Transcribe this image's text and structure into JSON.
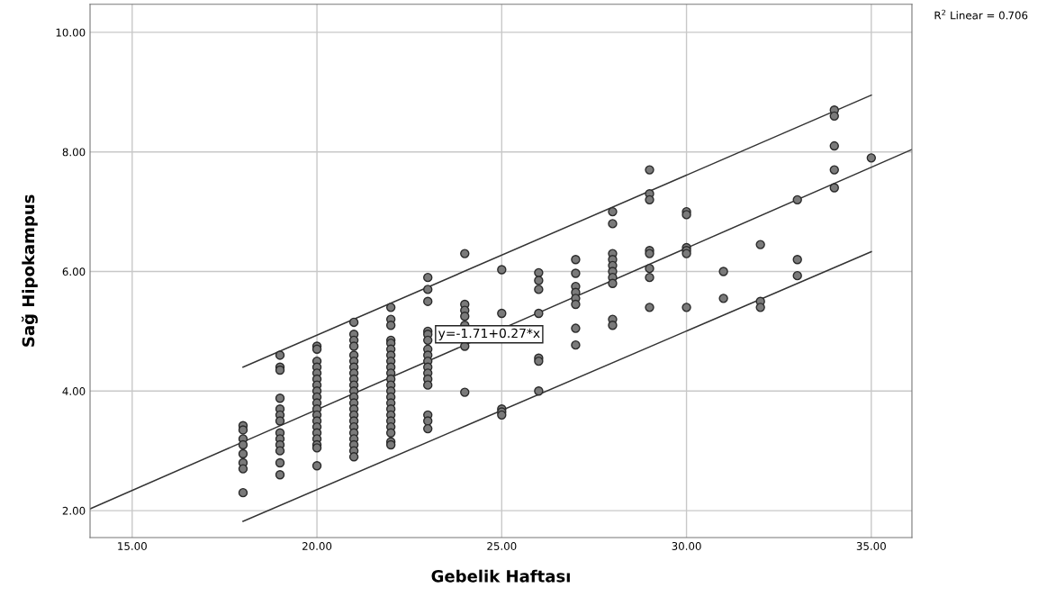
{
  "chart_data": {
    "type": "scatter",
    "xlabel": "Gebelik Haftası",
    "ylabel": "Sağ Hipokampus",
    "xlim": [
      13.86,
      36.1
    ],
    "ylim": [
      1.55,
      10.47
    ],
    "xticks": [
      {
        "value": 15,
        "label": "15.00"
      },
      {
        "value": 20,
        "label": "20.00"
      },
      {
        "value": 25,
        "label": "25.00"
      },
      {
        "value": 30,
        "label": "30.00"
      },
      {
        "value": 35,
        "label": "35.00"
      }
    ],
    "yticks": [
      {
        "value": 2,
        "label": "2.00"
      },
      {
        "value": 4,
        "label": "4.00"
      },
      {
        "value": 6,
        "label": "6.00"
      },
      {
        "value": 8,
        "label": "8.00"
      },
      {
        "value": 10,
        "label": "10.00"
      }
    ],
    "grid": true,
    "marker": "circle",
    "annotations": [
      {
        "text": "y=-1.71+0.27*x",
        "x": 24.66,
        "y": 4.95
      },
      "R$^{2}$ Linear = 0.706"
    ],
    "series": [
      {
        "color": "#7a7a7a",
        "x": [
          18,
          18,
          18,
          18,
          18,
          18,
          18,
          18,
          19,
          19,
          19,
          19,
          19,
          19,
          19,
          19,
          19,
          19,
          19,
          19,
          19,
          20,
          20,
          20,
          20,
          20,
          20,
          20,
          20,
          20,
          20,
          20,
          20,
          20,
          20,
          20,
          20,
          20,
          20,
          20,
          21,
          21,
          21,
          21,
          21,
          21,
          21,
          21,
          21,
          21,
          21,
          21,
          21,
          21,
          21,
          21,
          21,
          21,
          21,
          21,
          21,
          21,
          22,
          22,
          22,
          22,
          22,
          22,
          22,
          22,
          22,
          22,
          22,
          22,
          22,
          22,
          22,
          22,
          22,
          22,
          22,
          22,
          22,
          22,
          23,
          23,
          23,
          23,
          23,
          23,
          23,
          23,
          23,
          23,
          23,
          23,
          23,
          23,
          23,
          23,
          24,
          24,
          24,
          24,
          24,
          24,
          24,
          25,
          25,
          25,
          25,
          25,
          26,
          26,
          26,
          26,
          26,
          26,
          26,
          27,
          27,
          27,
          27,
          27,
          27,
          27,
          27,
          28,
          28,
          28,
          28,
          28,
          28,
          28,
          28,
          28,
          28,
          29,
          29,
          29,
          29,
          29,
          29,
          29,
          29,
          30,
          30,
          30,
          30,
          30,
          30,
          31,
          31,
          32,
          32,
          32,
          33,
          33,
          33,
          34,
          34,
          34,
          34,
          34,
          35
        ],
        "values": [
          3.42,
          3.35,
          3.2,
          3.1,
          2.95,
          2.8,
          2.7,
          2.3,
          4.6,
          4.4,
          4.35,
          3.88,
          3.7,
          3.6,
          3.5,
          3.3,
          3.2,
          3.1,
          3.0,
          2.8,
          2.6,
          4.75,
          4.7,
          4.5,
          4.4,
          4.3,
          4.2,
          4.1,
          4.0,
          3.9,
          3.8,
          3.7,
          3.6,
          3.5,
          3.4,
          3.3,
          3.2,
          3.1,
          3.05,
          2.75,
          5.15,
          4.95,
          4.85,
          4.75,
          4.6,
          4.5,
          4.4,
          4.3,
          4.2,
          4.1,
          4.0,
          3.9,
          3.8,
          3.7,
          3.6,
          3.5,
          3.4,
          3.3,
          3.2,
          3.1,
          3.0,
          2.9,
          5.4,
          5.2,
          5.1,
          4.85,
          4.8,
          4.7,
          4.6,
          4.5,
          4.4,
          4.3,
          4.2,
          4.1,
          4.0,
          3.9,
          3.8,
          3.7,
          3.6,
          3.5,
          3.4,
          3.3,
          3.15,
          3.1,
          5.9,
          5.7,
          5.5,
          5.0,
          4.95,
          4.85,
          4.7,
          4.6,
          4.5,
          4.4,
          4.3,
          4.2,
          4.1,
          3.6,
          3.5,
          3.37,
          6.3,
          5.45,
          5.35,
          5.25,
          5.1,
          4.75,
          3.98,
          6.03,
          5.3,
          3.7,
          3.65,
          3.6,
          5.98,
          5.85,
          5.7,
          5.3,
          4.55,
          4.5,
          4.0,
          6.2,
          5.97,
          5.75,
          5.65,
          5.55,
          5.45,
          5.05,
          4.77,
          7.0,
          6.8,
          6.3,
          6.2,
          6.1,
          6.0,
          5.9,
          5.8,
          5.2,
          5.1,
          7.7,
          7.3,
          7.2,
          6.35,
          6.3,
          6.05,
          5.9,
          5.4,
          7.0,
          6.95,
          6.4,
          6.35,
          6.3,
          5.4,
          6.0,
          5.55,
          6.45,
          5.5,
          5.4,
          7.2,
          6.2,
          5.93,
          8.7,
          8.6,
          8.1,
          7.7,
          7.4,
          7.9
        ]
      },
      {
        "type": "line",
        "marker": "none",
        "color": "#333333",
        "x": [
          13.86,
          36.1
        ],
        "values": [
          2.03,
          8.04
        ]
      },
      {
        "type": "line",
        "marker": "none",
        "color": "#333333",
        "x": [
          18,
          35
        ],
        "values": [
          4.4,
          8.95
        ]
      },
      {
        "type": "line",
        "marker": "none",
        "color": "#333333",
        "x": [
          18,
          35
        ],
        "values": [
          1.82,
          6.33
        ]
      }
    ]
  }
}
